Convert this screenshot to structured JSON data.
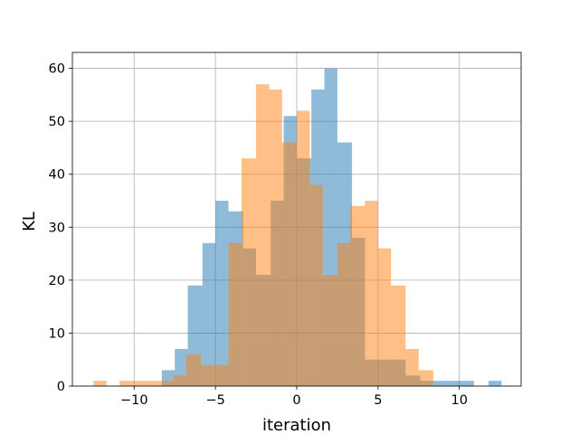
{
  "chart_data": {
    "type": "bar",
    "subtype": "overlapping-histogram",
    "title": "",
    "xlabel": "iteration",
    "ylabel": "KL",
    "xlim": [
      -13.8,
      13.8
    ],
    "ylim": [
      0,
      63
    ],
    "xticks": [
      -10,
      -5,
      0,
      5,
      10
    ],
    "yticks": [
      0,
      10,
      20,
      30,
      40,
      50,
      60
    ],
    "grid": true,
    "series": [
      {
        "color": "#1f77b4",
        "alpha": 0.5,
        "bins": [
          {
            "x0": -8.3,
            "x1": -7.5,
            "value": 3
          },
          {
            "x0": -7.5,
            "x1": -6.7,
            "value": 7
          },
          {
            "x0": -6.7,
            "x1": -5.8,
            "value": 19
          },
          {
            "x0": -5.8,
            "x1": -5.0,
            "value": 27
          },
          {
            "x0": -5.0,
            "x1": -4.2,
            "value": 35
          },
          {
            "x0": -4.2,
            "x1": -3.3,
            "value": 33
          },
          {
            "x0": -3.3,
            "x1": -2.5,
            "value": 26
          },
          {
            "x0": -2.5,
            "x1": -1.6,
            "value": 21
          },
          {
            "x0": -1.6,
            "x1": -0.8,
            "value": 35
          },
          {
            "x0": -0.8,
            "x1": 0.0,
            "value": 51
          },
          {
            "x0": 0.0,
            "x1": 0.9,
            "value": 43
          },
          {
            "x0": 0.9,
            "x1": 1.7,
            "value": 56
          },
          {
            "x0": 1.7,
            "x1": 2.5,
            "value": 60
          },
          {
            "x0": 2.5,
            "x1": 3.4,
            "value": 46
          },
          {
            "x0": 3.4,
            "x1": 4.2,
            "value": 28
          },
          {
            "x0": 4.2,
            "x1": 5.1,
            "value": 5
          },
          {
            "x0": 5.1,
            "x1": 5.9,
            "value": 5
          },
          {
            "x0": 5.9,
            "x1": 6.7,
            "value": 5
          },
          {
            "x0": 6.7,
            "x1": 7.6,
            "value": 2
          },
          {
            "x0": 7.6,
            "x1": 8.4,
            "value": 1
          },
          {
            "x0": 8.4,
            "x1": 9.3,
            "value": 1
          },
          {
            "x0": 9.3,
            "x1": 10.1,
            "value": 1
          },
          {
            "x0": 10.1,
            "x1": 10.9,
            "value": 1
          },
          {
            "x0": 11.8,
            "x1": 12.6,
            "value": 1
          }
        ]
      },
      {
        "color": "#ff7f0e",
        "alpha": 0.5,
        "bins": [
          {
            "x0": -12.5,
            "x1": -11.7,
            "value": 1
          },
          {
            "x0": -10.9,
            "x1": -10.1,
            "value": 1
          },
          {
            "x0": -10.1,
            "x1": -9.3,
            "value": 1
          },
          {
            "x0": -9.3,
            "x1": -8.4,
            "value": 1
          },
          {
            "x0": -8.4,
            "x1": -7.6,
            "value": 1
          },
          {
            "x0": -7.6,
            "x1": -6.8,
            "value": 2
          },
          {
            "x0": -6.8,
            "x1": -5.9,
            "value": 6
          },
          {
            "x0": -5.9,
            "x1": -5.1,
            "value": 4
          },
          {
            "x0": -5.1,
            "x1": -4.2,
            "value": 4
          },
          {
            "x0": -4.2,
            "x1": -3.4,
            "value": 27
          },
          {
            "x0": -3.4,
            "x1": -2.5,
            "value": 43
          },
          {
            "x0": -2.5,
            "x1": -1.7,
            "value": 57
          },
          {
            "x0": -1.7,
            "x1": -0.9,
            "value": 56
          },
          {
            "x0": -0.9,
            "x1": 0.0,
            "value": 46
          },
          {
            "x0": 0.0,
            "x1": 0.8,
            "value": 52
          },
          {
            "x0": 0.8,
            "x1": 1.6,
            "value": 38
          },
          {
            "x0": 1.6,
            "x1": 2.5,
            "value": 21
          },
          {
            "x0": 2.5,
            "x1": 3.3,
            "value": 27
          },
          {
            "x0": 3.3,
            "x1": 4.2,
            "value": 34
          },
          {
            "x0": 4.2,
            "x1": 5.0,
            "value": 35
          },
          {
            "x0": 5.0,
            "x1": 5.8,
            "value": 26
          },
          {
            "x0": 5.8,
            "x1": 6.7,
            "value": 19
          },
          {
            "x0": 6.7,
            "x1": 7.5,
            "value": 7
          },
          {
            "x0": 7.5,
            "x1": 8.4,
            "value": 3
          }
        ]
      }
    ]
  }
}
